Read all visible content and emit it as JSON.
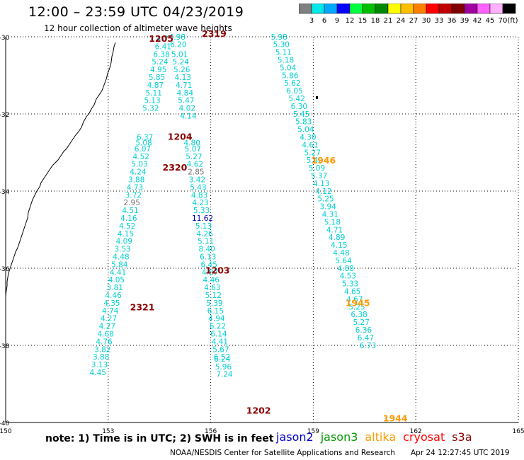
{
  "header": {
    "title": "12:00 – 23:59 UTC 04/23/2019",
    "subtitle": "12 hour collection of altimeter wave heights"
  },
  "scale": {
    "unit": "(ft)",
    "bins": [
      {
        "color": "#808080",
        "label": "3"
      },
      {
        "color": "#00e8e8",
        "label": "6"
      },
      {
        "color": "#00a8ff",
        "label": "9"
      },
      {
        "color": "#0000ff",
        "label": "12"
      },
      {
        "color": "#00ff40",
        "label": "15"
      },
      {
        "color": "#00c000",
        "label": "18"
      },
      {
        "color": "#008800",
        "label": "21"
      },
      {
        "color": "#ffff00",
        "label": "24"
      },
      {
        "color": "#ffc000",
        "label": "27"
      },
      {
        "color": "#ff8000",
        "label": "30"
      },
      {
        "color": "#ff0000",
        "label": "33"
      },
      {
        "color": "#c00000",
        "label": "36"
      },
      {
        "color": "#800000",
        "label": "39"
      },
      {
        "color": "#a000a0",
        "label": "42"
      },
      {
        "color": "#ff60ff",
        "label": "45"
      },
      {
        "color": "#ffb0ff",
        "label": "70"
      },
      {
        "color": "#000000",
        "label": ""
      }
    ]
  },
  "colors": {
    "swh": "#00d0d0",
    "swh_grey": "#707070",
    "swh_blue": "#0000c0",
    "time_red": "#8b0000",
    "time_orange": "#ff9900"
  },
  "axes": {
    "lat_labels": [
      "-30",
      "-32",
      "-34",
      "-36",
      "-38",
      "-40"
    ],
    "lon_labels": [
      "150",
      "153",
      "156",
      "159",
      "162",
      "165"
    ]
  },
  "times": [
    {
      "text": "1205",
      "lat": -30.13,
      "lon": 154.55,
      "color": "#8b0000"
    },
    {
      "text": "2319",
      "lat": -30.0,
      "lon": 156.1,
      "color": "#8b0000"
    },
    {
      "text": "1204",
      "lat": -32.67,
      "lon": 155.1,
      "color": "#8b0000"
    },
    {
      "text": "2320",
      "lat": -33.47,
      "lon": 154.95,
      "color": "#8b0000"
    },
    {
      "text": "1946",
      "lat": -33.28,
      "lon": 159.3,
      "color": "#ff9900"
    },
    {
      "text": "1203",
      "lat": -36.14,
      "lon": 156.2,
      "color": "#8b0000"
    },
    {
      "text": "2321",
      "lat": -37.09,
      "lon": 154.0,
      "color": "#8b0000"
    },
    {
      "text": "1945",
      "lat": -36.98,
      "lon": 160.3,
      "color": "#ff9900"
    },
    {
      "text": "1202",
      "lat": -39.77,
      "lon": 157.4,
      "color": "#8b0000"
    },
    {
      "text": "1944",
      "lat": -39.97,
      "lon": 161.4,
      "color": "#ff9900"
    }
  ],
  "tracks": [
    {
      "name": "Track A",
      "start_lon": 154.65,
      "end_lon": 152.7,
      "points": [
        {
          "v": "4.75",
          "lat": -30.12
        },
        {
          "v": "6.41",
          "lat": -30.32
        },
        {
          "v": "6.38",
          "lat": -30.52
        },
        {
          "v": "5.24",
          "lat": -30.72
        },
        {
          "v": "4.95",
          "lat": -30.92
        },
        {
          "v": "5.85",
          "lat": -31.12
        },
        {
          "v": "4.87",
          "lat": -31.32
        },
        {
          "v": "5.11",
          "lat": -31.52
        },
        {
          "v": "5.13",
          "lat": -31.72
        },
        {
          "v": "5.32",
          "lat": -31.92
        },
        {
          "v": "6.37",
          "lat": -32.67
        },
        {
          "v": "5.08",
          "lat": -32.82
        },
        {
          "v": "6.07",
          "lat": -32.97
        },
        {
          "v": "4.52",
          "lat": -33.17
        },
        {
          "v": "5.03",
          "lat": -33.37
        },
        {
          "v": "4.24",
          "lat": -33.57
        },
        {
          "v": "3.88",
          "lat": -33.77
        },
        {
          "v": "4.73",
          "lat": -33.97
        },
        {
          "v": "3.72",
          "lat": -34.17
        },
        {
          "v": "2.95",
          "lat": -34.37,
          "color": "#707070"
        },
        {
          "v": "4.51",
          "lat": -34.57
        },
        {
          "v": "4.16",
          "lat": -34.77
        },
        {
          "v": "4.52",
          "lat": -34.97
        },
        {
          "v": "4.15",
          "lat": -35.17
        },
        {
          "v": "4.09",
          "lat": -35.37
        },
        {
          "v": "3.53",
          "lat": -35.57
        },
        {
          "v": "4.48",
          "lat": -35.77
        },
        {
          "v": "5.84",
          "lat": -35.97
        },
        {
          "v": "4.41",
          "lat": -36.17
        },
        {
          "v": "4.05",
          "lat": -36.37
        },
        {
          "v": "3.81",
          "lat": -36.57
        },
        {
          "v": "4.46",
          "lat": -36.77
        },
        {
          "v": "4.35",
          "lat": -36.97
        },
        {
          "v": "4.74",
          "lat": -37.17
        },
        {
          "v": "4.27",
          "lat": -37.37
        },
        {
          "v": "4.27",
          "lat": -37.57
        },
        {
          "v": "4.68",
          "lat": -37.77
        },
        {
          "v": "4.76",
          "lat": -37.97
        },
        {
          "v": "3.82",
          "lat": -38.17
        },
        {
          "v": "3.88",
          "lat": -38.37
        },
        {
          "v": "3.13",
          "lat": -38.57
        },
        {
          "v": "4.45",
          "lat": -38.77
        }
      ]
    },
    {
      "name": "Track B",
      "start_lon": 155.02,
      "end_lon": 156.4,
      "points": [
        {
          "v": "4.98",
          "lat": -30.07
        },
        {
          "v": "6.20",
          "lat": -30.27
        },
        {
          "v": "5.01",
          "lat": -30.52
        },
        {
          "v": "5.24",
          "lat": -30.72
        },
        {
          "v": "5.26",
          "lat": -30.92
        },
        {
          "v": "4.13",
          "lat": -31.12
        },
        {
          "v": "4.71",
          "lat": -31.32
        },
        {
          "v": "4.84",
          "lat": -31.52
        },
        {
          "v": "5.47",
          "lat": -31.72
        },
        {
          "v": "4.02",
          "lat": -31.92
        },
        {
          "v": "4.14",
          "lat": -32.12
        },
        {
          "v": "4.80",
          "lat": -32.82
        },
        {
          "v": "5.07",
          "lat": -32.97
        },
        {
          "v": "5.27",
          "lat": -33.17
        },
        {
          "v": "4.62",
          "lat": -33.37
        },
        {
          "v": "2.85",
          "lat": -33.57,
          "color": "#707070"
        },
        {
          "v": "3.42",
          "lat": -33.77
        },
        {
          "v": "5.43",
          "lat": -33.97
        },
        {
          "v": "4.83",
          "lat": -34.17
        },
        {
          "v": "4.23",
          "lat": -34.37
        },
        {
          "v": "5.33",
          "lat": -34.57
        },
        {
          "v": "11.62",
          "lat": -34.77,
          "color": "#0000c0"
        },
        {
          "v": "5.13",
          "lat": -34.97
        },
        {
          "v": "4.26",
          "lat": -35.17
        },
        {
          "v": "5.11",
          "lat": -35.37
        },
        {
          "v": "8.40",
          "lat": -35.57
        },
        {
          "v": "6.13",
          "lat": -35.77
        },
        {
          "v": "6.45",
          "lat": -35.97
        },
        {
          "v": "4.87",
          "lat": -36.17
        },
        {
          "v": "4.46",
          "lat": -36.37
        },
        {
          "v": "4.63",
          "lat": -36.57
        },
        {
          "v": "5.12",
          "lat": -36.77
        },
        {
          "v": "5.39",
          "lat": -36.97
        },
        {
          "v": "6.15",
          "lat": -37.17
        },
        {
          "v": "4.94",
          "lat": -37.37
        },
        {
          "v": "6.22",
          "lat": -37.57
        },
        {
          "v": "6.14",
          "lat": -37.77
        },
        {
          "v": "4.41",
          "lat": -37.97
        },
        {
          "v": "5.67",
          "lat": -38.17
        },
        {
          "v": "6.52",
          "lat": -38.37
        },
        {
          "v": "6.24",
          "lat": -38.42
        },
        {
          "v": "5.96",
          "lat": -38.62
        },
        {
          "v": "7.24",
          "lat": -38.82
        }
      ]
    },
    {
      "name": "Track C",
      "start_lon": 158.0,
      "end_lon": 160.6,
      "points": [
        {
          "v": "5.98",
          "lat": -30.07
        },
        {
          "v": "5.30",
          "lat": -30.27
        },
        {
          "v": "5.11",
          "lat": -30.47
        },
        {
          "v": "5.18",
          "lat": -30.67
        },
        {
          "v": "5.04",
          "lat": -30.87
        },
        {
          "v": "5.86",
          "lat": -31.07
        },
        {
          "v": "5.62",
          "lat": -31.27
        },
        {
          "v": "6.05",
          "lat": -31.47
        },
        {
          "v": "5.42",
          "lat": -31.67
        },
        {
          "v": "6.30",
          "lat": -31.87
        },
        {
          "v": "5.45",
          "lat": -32.07
        },
        {
          "v": "5.83",
          "lat": -32.27
        },
        {
          "v": "5.04",
          "lat": -32.47
        },
        {
          "v": "4.30",
          "lat": -32.67
        },
        {
          "v": "4.61",
          "lat": -32.87
        },
        {
          "v": "5.27",
          "lat": -33.07
        },
        {
          "v": "5.40",
          "lat": -33.27
        },
        {
          "v": "5.09",
          "lat": -33.47
        },
        {
          "v": "5.37",
          "lat": -33.67
        },
        {
          "v": "4.13",
          "lat": -33.87
        },
        {
          "v": "4.12",
          "lat": -34.07
        },
        {
          "v": "5.25",
          "lat": -34.27
        },
        {
          "v": "3.94",
          "lat": -34.47
        },
        {
          "v": "4.31",
          "lat": -34.67
        },
        {
          "v": "5.18",
          "lat": -34.87
        },
        {
          "v": "4.71",
          "lat": -35.07
        },
        {
          "v": "4.89",
          "lat": -35.27
        },
        {
          "v": "4.15",
          "lat": -35.47
        },
        {
          "v": "4.48",
          "lat": -35.67
        },
        {
          "v": "5.64",
          "lat": -35.87
        },
        {
          "v": "4.88",
          "lat": -36.07
        },
        {
          "v": "4.53",
          "lat": -36.27
        },
        {
          "v": "5.33",
          "lat": -36.47
        },
        {
          "v": "4.65",
          "lat": -36.67
        },
        {
          "v": "4.67",
          "lat": -36.87
        },
        {
          "v": "5.25",
          "lat": -37.07
        },
        {
          "v": "6.38",
          "lat": -37.27
        },
        {
          "v": "5.27",
          "lat": -37.47
        },
        {
          "v": "6.36",
          "lat": -37.67
        },
        {
          "v": "6.47",
          "lat": -37.87
        },
        {
          "v": "6.73",
          "lat": -38.07
        }
      ]
    }
  ],
  "footer": {
    "note": "note:  1) Time is in UTC;  2) SWH is in feet",
    "satellites": [
      {
        "name": "jason2",
        "color": "#0000cc"
      },
      {
        "name": "jason3",
        "color": "#009900"
      },
      {
        "name": "altika",
        "color": "#ff9900"
      },
      {
        "name": "cryosat",
        "color": "#ff0000"
      },
      {
        "name": "s3a",
        "color": "#8b0000"
      }
    ],
    "credit": "NOAA/NESDIS Center for Satellite Applications and Research",
    "timestamp": "Apr 24 12:27:45 UTC 2019"
  }
}
